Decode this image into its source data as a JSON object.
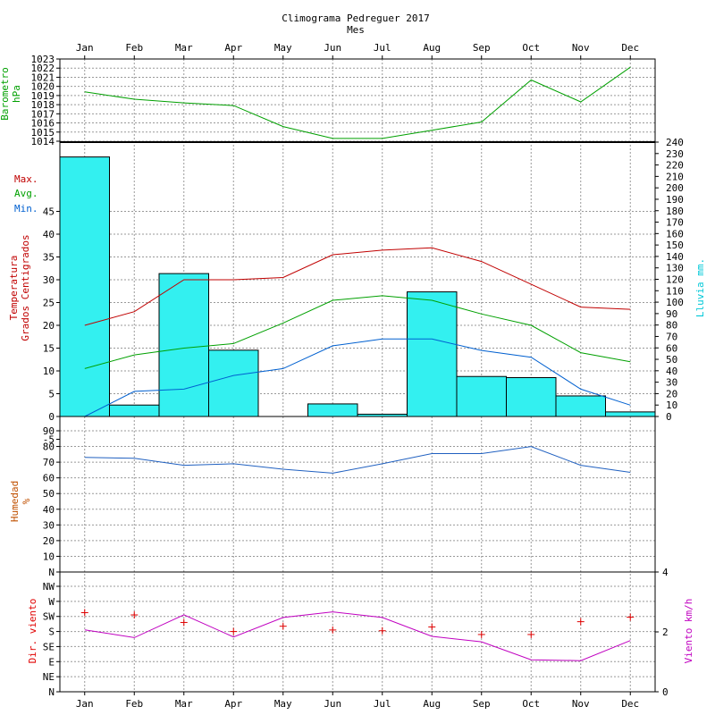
{
  "chart_data": {
    "type": "line",
    "title": "Climograma Pedreguer 2017",
    "xlabel": "Mes",
    "months": [
      "Jan",
      "Feb",
      "Mar",
      "Apr",
      "May",
      "Jun",
      "Jul",
      "Aug",
      "Sep",
      "Oct",
      "Nov",
      "Dec"
    ],
    "colors": {
      "barometer": "#00a000",
      "max": "#c00000",
      "avg": "#00a000",
      "min": "#0060d0",
      "rain_fill": "#33f0f0",
      "humidity_label": "#c05000",
      "humidity_line": "#2060c0",
      "wind_dir": "#e00000",
      "wind_speed": "#c000c0",
      "grid": "#999999",
      "axis": "#000000"
    },
    "barometer": {
      "label_line1": "Barometro",
      "label_line2": "hPa",
      "ylim": [
        1014,
        1023
      ],
      "ticks": [
        "1014",
        "1015",
        "1016",
        "1017",
        "1018",
        "1019",
        "1020",
        "1021",
        "1022",
        "1023"
      ],
      "values": [
        1019.4,
        1018.6,
        1018.2,
        1017.9,
        1015.6,
        1014.3,
        1014.3,
        1015.2,
        1016.1,
        1020.7,
        1018.3,
        1022.1
      ]
    },
    "temperature": {
      "label_line1": "Temperatura",
      "label_line2": "Grados Centigrados",
      "legend": [
        "Max.",
        "Avg.",
        "Min."
      ],
      "ylim": [
        -5,
        55
      ],
      "ticks": [
        "-5",
        "0",
        "5",
        "10",
        "15",
        "20",
        "25",
        "30",
        "35",
        "40",
        "45"
      ],
      "max": [
        20,
        23,
        30,
        30,
        30.5,
        35.5,
        36.5,
        37,
        34,
        29,
        24,
        23.5
      ],
      "avg": [
        10.5,
        13.5,
        15,
        16,
        20.5,
        25.5,
        26.5,
        25.5,
        22.5,
        20,
        14,
        12
      ],
      "min": [
        0,
        5.5,
        6,
        9,
        10.5,
        15.5,
        17,
        17,
        14.5,
        13,
        6,
        2.5
      ]
    },
    "rain": {
      "label": "Lluvia mm.",
      "ylim": [
        0,
        240
      ],
      "ticks": [
        "0",
        "10",
        "20",
        "30",
        "40",
        "50",
        "60",
        "70",
        "80",
        "90",
        "100",
        "110",
        "120",
        "130",
        "140",
        "150",
        "160",
        "170",
        "180",
        "190",
        "200",
        "210",
        "220",
        "230",
        "240"
      ],
      "values": [
        227,
        10,
        125,
        58,
        0,
        11,
        2,
        109,
        35,
        34,
        18,
        4
      ]
    },
    "humidity": {
      "label_line1": "Humedad",
      "label_line2": "%",
      "ylim": [
        0,
        90
      ],
      "ticks": [
        "N",
        "10",
        "20",
        "30",
        "40",
        "50",
        "60",
        "70",
        "80",
        "90"
      ],
      "values": [
        73,
        72.5,
        68,
        69,
        65.5,
        63,
        69,
        75.5,
        75.5,
        80,
        68,
        63.5
      ]
    },
    "wind": {
      "dir_label": "Dir. viento",
      "speed_label": "Viento km/h",
      "dir_ticks": [
        "N",
        "NE",
        "E",
        "SE",
        "S",
        "SW",
        "W",
        "NW"
      ],
      "dir_values": [
        5.25,
        5.1,
        4.6,
        4.0,
        4.35,
        4.1,
        4.05,
        4.3,
        3.8,
        3.8,
        4.65,
        4.95
      ],
      "speed_ylim": [
        0,
        4
      ],
      "speed_ticks": [
        "0",
        "2",
        "4"
      ],
      "speed_values": [
        2.07,
        1.81,
        2.57,
        1.83,
        2.48,
        2.67,
        2.48,
        1.85,
        1.67,
        1.07,
        1.04,
        1.71
      ]
    }
  }
}
